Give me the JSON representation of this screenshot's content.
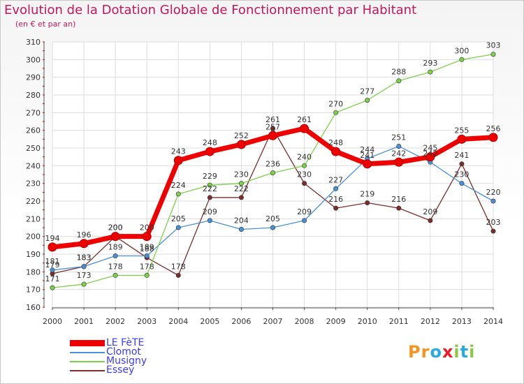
{
  "title": "Evolution de la Dotation Globale de Fonctionnement par Habitant",
  "subtitle": "(en € et par an)",
  "logo": {
    "text": "Proxiti",
    "letters": [
      {
        "ch": "P",
        "color": "#f7941d"
      },
      {
        "ch": "r",
        "color": "#f7941d"
      },
      {
        "ch": "o",
        "color": "#29abe2"
      },
      {
        "ch": "x",
        "color": "#ed1c24"
      },
      {
        "ch": "i",
        "color": "#8dc63f"
      },
      {
        "ch": "t",
        "color": "#29abe2"
      },
      {
        "ch": "i",
        "color": "#8dc63f"
      }
    ]
  },
  "chart_data": {
    "type": "line",
    "title": "Evolution de la Dotation Globale de Fonctionnement par Habitant",
    "subtitle": "(en € et par an)",
    "xlabel": "",
    "ylabel": "",
    "x": [
      "2000",
      "2001",
      "2002",
      "2003",
      "2004",
      "2005",
      "2006",
      "2007",
      "2008",
      "2009",
      "2010",
      "2011",
      "2012",
      "2013",
      "2014"
    ],
    "ylim": [
      160,
      310
    ],
    "yticks": [
      160,
      170,
      180,
      190,
      200,
      210,
      220,
      230,
      240,
      250,
      260,
      270,
      280,
      290,
      300,
      310
    ],
    "grid": true,
    "legend_position": "bottom-left",
    "series": [
      {
        "name": "Essey",
        "color": "#7a2e2e",
        "values": [
          179,
          183,
          200,
          188,
          178,
          222,
          222,
          261,
          230,
          216,
          219,
          216,
          209,
          241,
          203
        ]
      },
      {
        "name": "Clomot",
        "color": "#4a90d9",
        "values": [
          181,
          183,
          189,
          189,
          205,
          209,
          204,
          205,
          209,
          227,
          244,
          251,
          242,
          230,
          220
        ]
      },
      {
        "name": "Musigny",
        "color": "#7cd14a",
        "values": [
          171,
          173,
          178,
          178,
          224,
          229,
          230,
          236,
          240,
          270,
          277,
          288,
          293,
          300,
          303
        ]
      },
      {
        "name": "LE FèTE",
        "color": "#ee0000",
        "values": [
          194,
          196,
          200,
          200,
          243,
          248,
          252,
          257,
          261,
          248,
          241,
          242,
          245,
          255,
          256
        ]
      }
    ],
    "legend": [
      "LE FèTE",
      "Clomot",
      "Musigny",
      "Essey"
    ]
  }
}
